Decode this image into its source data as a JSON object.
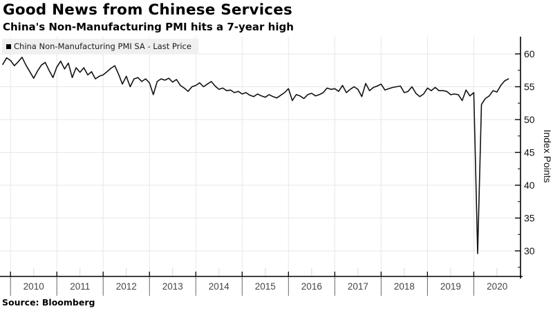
{
  "header": {
    "title": "Good News from Chinese Services",
    "subtitle": "China's Non-Manufacturing PMI hits a 7-year high"
  },
  "legend": {
    "marker": "black-square",
    "label": "China Non-Manufacturing PMI SA - Last Price"
  },
  "source": "Source: Bloomberg",
  "colors": {
    "line": "#111111",
    "grid": "#e7e7e7",
    "axis": "#000000",
    "legend_bg": "#f0f0f0",
    "year_label": "#444444",
    "tick_label": "#111111",
    "separator": "#666666",
    "halfyear_tick": "#d8d8d8"
  },
  "chart_data": {
    "type": "line",
    "title": "Good News from Chinese Services",
    "subtitle": "China's Non-Manufacturing PMI hits a 7-year high",
    "ylabel": "Index Points",
    "xlabel": "",
    "grid": true,
    "legend_position": "top-left",
    "y_ticks": [
      30,
      35,
      40,
      45,
      50,
      55,
      60
    ],
    "y_minor_step": 2.5,
    "ylim": [
      26,
      62.5
    ],
    "x_year_labels": [
      "2010",
      "2011",
      "2012",
      "2013",
      "2014",
      "2015",
      "2016",
      "2017",
      "2018",
      "2019",
      "2020"
    ],
    "series": [
      {
        "name": "China Non-Manufacturing PMI SA - Last Price",
        "frequency": "monthly",
        "x_start_month": "2009-11",
        "x_end_month": "2020-10",
        "values": [
          58.4,
          59.4,
          59.0,
          58.2,
          58.8,
          59.5,
          58.3,
          57.3,
          56.3,
          57.4,
          58.3,
          58.7,
          57.5,
          56.4,
          58.0,
          58.9,
          57.7,
          58.6,
          56.4,
          57.9,
          57.2,
          57.9,
          56.8,
          57.3,
          56.2,
          56.6,
          56.8,
          57.3,
          57.8,
          58.2,
          56.9,
          55.4,
          56.6,
          55.0,
          56.2,
          56.4,
          55.8,
          56.2,
          55.6,
          53.8,
          55.8,
          56.2,
          56.0,
          56.3,
          55.7,
          56.1,
          55.2,
          54.8,
          54.3,
          55.0,
          55.2,
          55.6,
          55.0,
          55.4,
          55.8,
          55.1,
          54.6,
          54.8,
          54.4,
          54.5,
          54.1,
          54.3,
          53.9,
          54.1,
          53.7,
          53.5,
          53.9,
          53.6,
          53.4,
          53.8,
          53.5,
          53.3,
          53.7,
          54.1,
          54.7,
          52.9,
          53.8,
          53.6,
          53.2,
          53.8,
          54.0,
          53.6,
          53.8,
          54.1,
          54.8,
          54.6,
          54.7,
          54.3,
          55.2,
          54.1,
          54.6,
          55.0,
          54.6,
          53.5,
          55.5,
          54.4,
          54.9,
          55.1,
          55.4,
          54.5,
          54.7,
          54.9,
          55.0,
          55.1,
          54.1,
          54.3,
          55.0,
          54.0,
          53.5,
          53.9,
          54.8,
          54.4,
          54.9,
          54.4,
          54.4,
          54.3,
          53.8,
          53.9,
          53.8,
          52.9,
          54.5,
          53.6,
          54.1,
          29.6,
          52.3,
          53.2,
          53.6,
          54.4,
          54.2,
          55.2,
          55.9,
          56.2
        ]
      }
    ]
  }
}
